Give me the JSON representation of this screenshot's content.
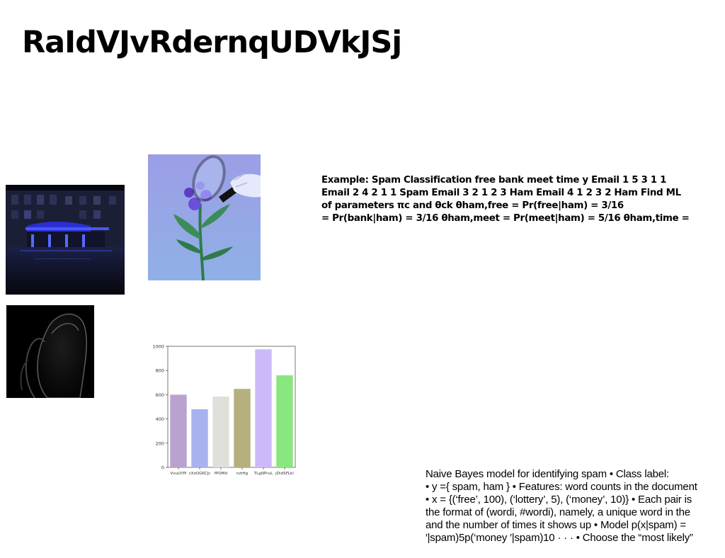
{
  "title": "RaIdVJvRdernqUDVkJSj",
  "photos": {
    "street": "night street cafe with blue lights",
    "flower": "hand holding magnifying glass over purple flowers",
    "swirl": "dark abstract swirl shape"
  },
  "example_text": {
    "lines": [
      "Example: Spam Classification free bank meet time y Email 1 5 3 1 1",
      "Email 2 4 2 1 1 Spam Email 3 2 1 2 3 Ham Email 4 1 2 3 2 Ham Find ML",
      "of parameters πc and θck θham,free = Pr(free|ham) = 3/16",
      "= Pr(bank|ham) = 3/16 θham,meet = Pr(meet|ham) = 5/16 θham,time ="
    ]
  },
  "naive_text": {
    "lines": [
      "Naive Bayes model for identifying spam • Class label:",
      "• y ={ spam, ham } • Features: word counts in the document",
      "• x = {(‘free’, 100), (‘lottery’, 5), (‘money’, 10)} • Each pair is",
      "the format of (wordi, #wordi), namely, a unique word in the",
      "and the number of times it shows up • Model p(x|spam) =",
      "′|spam)5p(‘money ′|spam)10 · · · • Choose the “most likely”"
    ]
  },
  "chart_data": {
    "type": "bar",
    "categories": [
      "VvuUYPi",
      "cXzOGKCJc",
      "fPOMd",
      "nztHg",
      "TLgNPruL",
      "jDidSFLkl"
    ],
    "values": [
      600,
      480,
      585,
      648,
      975,
      760
    ],
    "colors": [
      "#b9a2cf",
      "#a8b2ee",
      "#e0e0da",
      "#b6b07e",
      "#ccb9fa",
      "#8ae67e"
    ],
    "ylim": [
      0,
      1000
    ],
    "yticks": [
      0,
      200,
      400,
      600,
      800,
      1000
    ],
    "title": "",
    "xlabel": "",
    "ylabel": "",
    "grid": false
  }
}
